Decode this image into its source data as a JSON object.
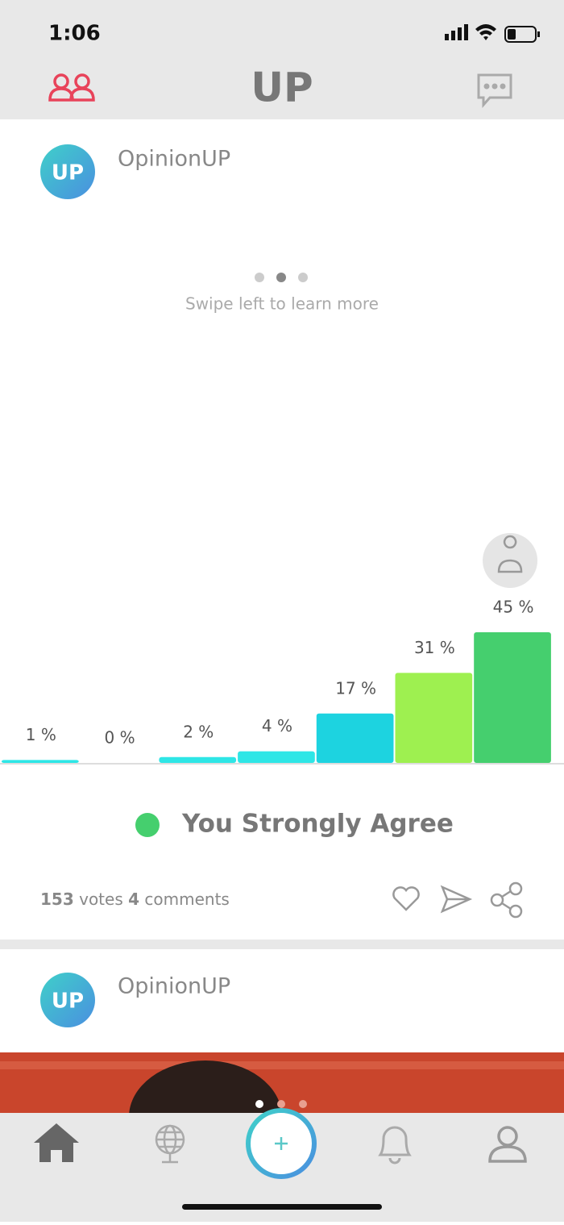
{
  "status_bar": {
    "time": "1:06"
  },
  "header": {
    "logo": "UP"
  },
  "posts": [
    {
      "avatar_text": "UP",
      "author": "OpinionUP",
      "swipe_hint": "Swipe left to learn more",
      "chart": {
        "type": "bar",
        "values": [
          1,
          0,
          2,
          4,
          17,
          31,
          45
        ],
        "value_labels": [
          "1 %",
          "0 %",
          "2 %",
          "4 %",
          "17 %",
          "31 %",
          "45 %"
        ],
        "colors": [
          "#2ee6e6",
          "#2ee6e6",
          "#2ee6e6",
          "#2ee6e6",
          "#1dd3e0",
          "#9ef050",
          "#45cf6e"
        ]
      },
      "result": "You Strongly Agree",
      "votes": 153,
      "votes_label": "votes",
      "comments": 4,
      "comments_label": "comments"
    },
    {
      "avatar_text": "UP",
      "author": "OpinionUP"
    }
  ]
}
